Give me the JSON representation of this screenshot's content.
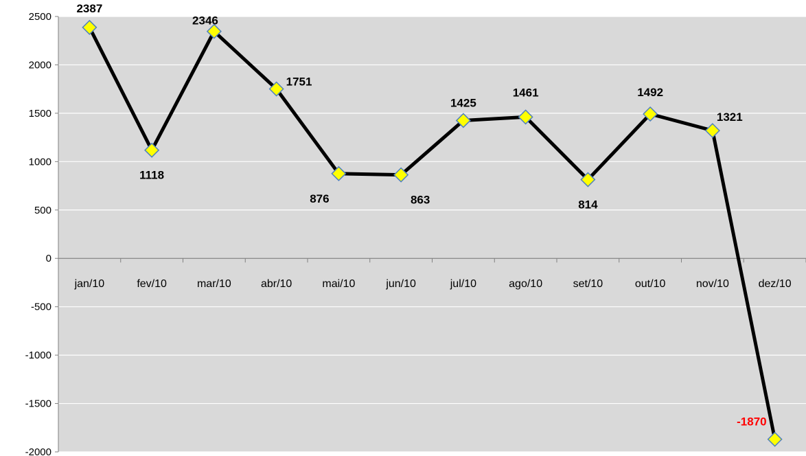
{
  "chart_data": {
    "type": "line",
    "categories": [
      "jan/10",
      "fev/10",
      "mar/10",
      "abr/10",
      "mai/10",
      "jun/10",
      "jul/10",
      "ago/10",
      "set/10",
      "out/10",
      "nov/10",
      "dez/10"
    ],
    "values": [
      2387,
      1118,
      2346,
      1751,
      876,
      863,
      1425,
      1461,
      814,
      1492,
      1321,
      -1870
    ],
    "data_labels": [
      "2387",
      "1118",
      "2346",
      "1751",
      "876",
      "863",
      "1425",
      "1461",
      "814",
      "1492",
      "1321",
      "-1870"
    ],
    "yticks": [
      2500,
      2000,
      1500,
      1000,
      500,
      0,
      -500,
      -1000,
      -1500,
      -2000
    ],
    "ytick_labels": [
      "2500",
      "2000",
      "1500",
      "1000",
      "500",
      "0",
      "-500",
      "-1000",
      "-1500",
      "-2000"
    ],
    "ylim": [
      -2000,
      2500
    ],
    "title": "",
    "xlabel": "",
    "ylabel": "",
    "grid": true,
    "legend": "none",
    "colors": {
      "plot_background": "#d9d9d9",
      "gridline": "#ffffff",
      "line": "#000000",
      "marker_fill": "#ffff00",
      "marker_stroke": "#4f81bd",
      "label": "#000000",
      "negative_label": "#ff0000"
    }
  }
}
